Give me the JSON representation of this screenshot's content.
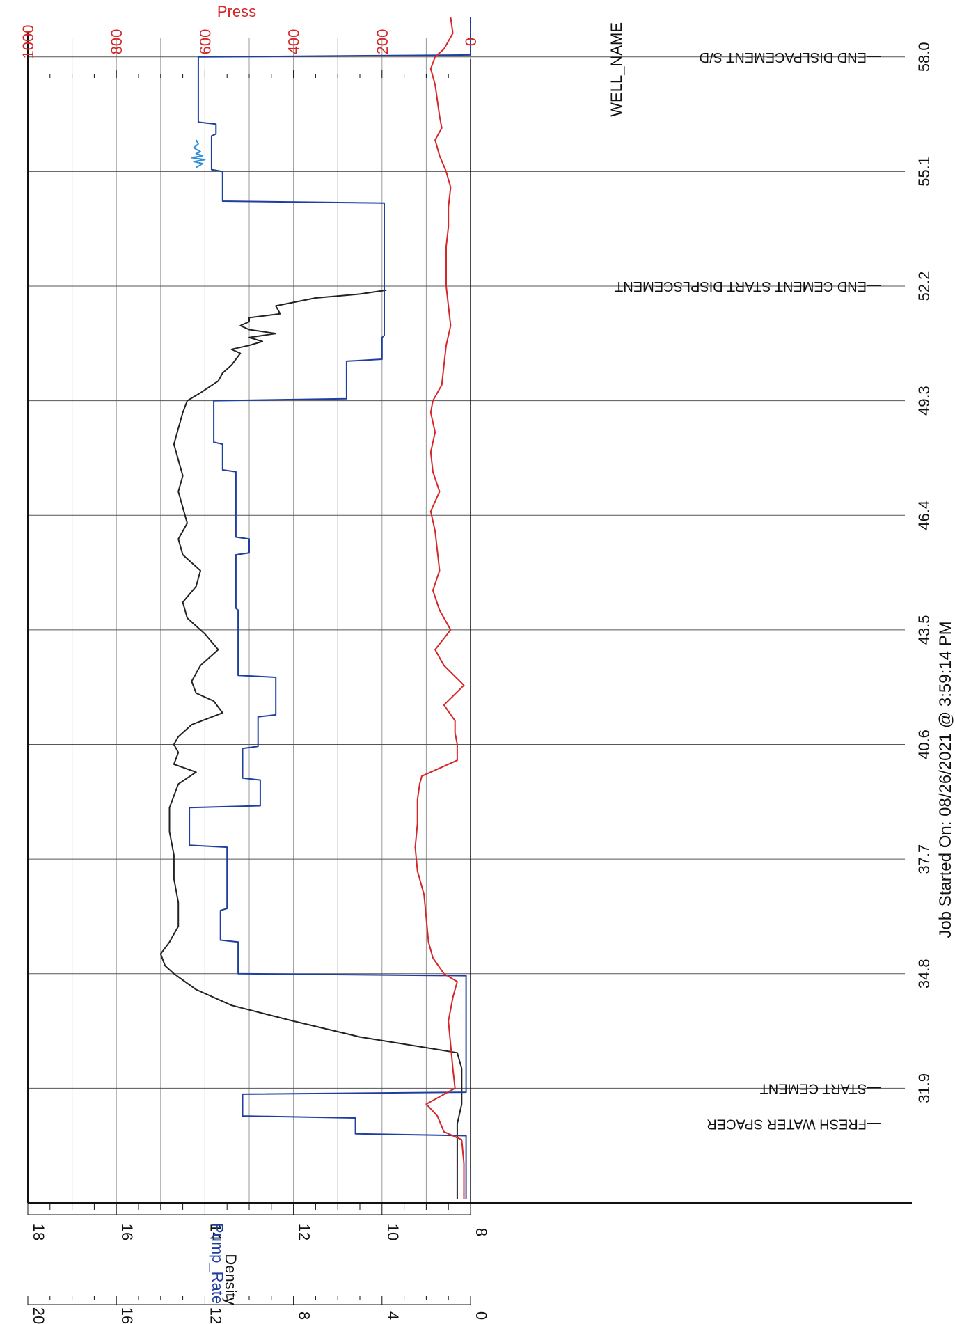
{
  "header": {
    "well_label": "WELL_NAME"
  },
  "footer": {
    "job_started": "Job Started On: 08/26/2021 @ 3:59:14 PM"
  },
  "chart_data": {
    "type": "line",
    "orientation": "rotated-90-clockwise",
    "x_axis": {
      "label": "",
      "range": [
        29.0,
        59.0
      ],
      "ticks": [
        "31.9",
        "34.8",
        "37.7",
        "40.6",
        "43.5",
        "46.4",
        "49.3",
        "52.2",
        "55.1",
        "58.0"
      ],
      "tick_values": [
        31.9,
        34.8,
        37.7,
        40.6,
        43.5,
        46.4,
        49.3,
        52.2,
        55.1,
        58.0
      ]
    },
    "y_axes": [
      {
        "name": "Press",
        "color": "#d62728",
        "range": [
          0,
          1000
        ],
        "ticks": [
          "0",
          "200",
          "400",
          "600",
          "800",
          "1000"
        ]
      },
      {
        "name": "Density",
        "color": "#222222",
        "range": [
          8,
          18
        ],
        "ticks": [
          "8",
          "10",
          "12",
          "14",
          "16",
          "18"
        ]
      },
      {
        "name": "Pump_Rate",
        "color": "#1f3fa0",
        "range": [
          0,
          20
        ],
        "ticks": [
          "0",
          "4",
          "8",
          "12",
          "16",
          "20"
        ]
      }
    ],
    "annotations": [
      {
        "x": 31.0,
        "text": "FRESH WATER SPACER"
      },
      {
        "x": 31.9,
        "text": "START CEMENT"
      },
      {
        "x": 52.2,
        "text": "END CEMENT START DISPLSCEMENT"
      },
      {
        "x": 58.0,
        "text": "END DISLPACEMENT S/D"
      }
    ],
    "series": [
      {
        "name": "Density",
        "color": "#222222",
        "x": [
          29.1,
          30.0,
          30.6,
          31.0,
          31.5,
          32.0,
          32.4,
          32.8,
          33.2,
          33.6,
          34.0,
          34.4,
          34.8,
          35.0,
          35.3,
          35.6,
          36.0,
          36.6,
          37.2,
          37.8,
          38.4,
          39.0,
          39.6,
          39.9,
          40.1,
          40.4,
          40.6,
          40.8,
          41.1,
          41.4,
          41.7,
          41.9,
          42.2,
          42.6,
          43.0,
          43.4,
          43.8,
          44.2,
          44.6,
          45.0,
          45.4,
          45.8,
          46.2,
          46.6,
          47.0,
          47.4,
          47.8,
          48.2,
          48.6,
          49.0,
          49.3,
          49.5,
          49.8,
          50.0,
          50.2,
          50.5,
          50.6,
          50.7,
          50.8,
          50.9,
          51.0,
          51.1,
          51.2,
          51.3,
          51.4,
          51.5,
          51.7,
          51.9,
          52.0,
          52.1
        ],
        "values": [
          8.3,
          8.3,
          8.3,
          8.3,
          8.2,
          8.2,
          8.2,
          8.3,
          10.5,
          12.0,
          13.4,
          14.2,
          14.7,
          14.9,
          15.0,
          14.8,
          14.6,
          14.6,
          14.7,
          14.7,
          14.8,
          14.8,
          14.6,
          14.2,
          14.7,
          14.6,
          14.7,
          14.6,
          14.3,
          13.6,
          13.8,
          14.2,
          14.3,
          14.1,
          13.7,
          14.0,
          14.4,
          14.5,
          14.2,
          14.1,
          14.5,
          14.6,
          14.4,
          14.5,
          14.6,
          14.5,
          14.6,
          14.7,
          14.6,
          14.5,
          14.4,
          14.1,
          13.7,
          13.6,
          13.4,
          13.2,
          13.4,
          13.0,
          12.7,
          13.0,
          12.4,
          13.0,
          13.2,
          13.0,
          13.0,
          12.3,
          12.4,
          11.5,
          10.5,
          9.9
        ]
      },
      {
        "name": "Pump_Rate",
        "color": "#1f3fa0",
        "x": [
          29.1,
          30.7,
          30.75,
          31.15,
          31.2,
          31.75,
          31.8,
          33.8,
          34.75,
          34.8,
          35.6,
          35.65,
          36.4,
          36.45,
          38.0,
          38.05,
          39.0,
          39.05,
          39.7,
          39.75,
          40.5,
          40.55,
          41.3,
          41.35,
          42.3,
          42.35,
          44.0,
          44.05,
          45.4,
          45.45,
          45.8,
          45.85,
          47.5,
          47.55,
          48.2,
          48.25,
          49.3,
          49.35,
          50.3,
          50.35,
          50.9,
          50.95,
          54.3,
          54.35,
          55.1,
          55.15,
          56.0,
          56.05,
          56.3,
          56.35,
          58.0,
          58.05,
          59.0
        ],
        "values": [
          0.2,
          0.2,
          5.2,
          5.2,
          10.3,
          10.3,
          0.2,
          0.2,
          0.2,
          10.5,
          10.5,
          11.3,
          11.3,
          11.0,
          11.0,
          12.7,
          12.7,
          9.5,
          9.5,
          10.3,
          10.3,
          9.6,
          9.6,
          8.8,
          8.8,
          10.5,
          10.5,
          10.6,
          10.6,
          10.0,
          10.0,
          10.6,
          10.6,
          11.2,
          11.2,
          11.6,
          11.6,
          5.6,
          5.6,
          4.0,
          4.0,
          3.9,
          3.9,
          11.2,
          11.2,
          11.7,
          11.7,
          11.5,
          11.5,
          12.3,
          12.3,
          0.0,
          0.0
        ]
      },
      {
        "name": "Press",
        "color": "#d62728",
        "x": [
          29.1,
          30.0,
          30.6,
          30.8,
          31.2,
          31.5,
          31.9,
          32.4,
          33.0,
          33.6,
          34.2,
          34.6,
          34.8,
          35.2,
          35.6,
          36.2,
          36.8,
          37.4,
          38.0,
          38.6,
          39.2,
          39.6,
          39.8,
          40.2,
          40.6,
          40.9,
          41.2,
          41.6,
          42.1,
          42.6,
          43.0,
          43.5,
          44.0,
          44.5,
          45.0,
          45.5,
          46.0,
          46.5,
          47.0,
          47.5,
          48.0,
          48.5,
          49.0,
          49.3,
          49.7,
          50.2,
          50.7,
          51.2,
          51.7,
          52.2,
          52.7,
          53.2,
          53.7,
          54.2,
          54.7,
          55.1,
          55.5,
          55.9,
          56.2,
          56.5,
          56.9,
          57.3,
          57.7,
          58.0,
          58.2,
          58.6,
          59.0
        ],
        "values": [
          15,
          15,
          20,
          60,
          75,
          100,
          35,
          40,
          45,
          50,
          40,
          30,
          60,
          85,
          95,
          100,
          105,
          120,
          125,
          120,
          120,
          115,
          110,
          30,
          30,
          35,
          35,
          60,
          15,
          60,
          80,
          45,
          70,
          85,
          70,
          75,
          80,
          90,
          70,
          85,
          90,
          80,
          90,
          85,
          65,
          60,
          55,
          45,
          50,
          55,
          55,
          55,
          50,
          50,
          45,
          55,
          70,
          80,
          65,
          70,
          75,
          80,
          90,
          80,
          60,
          40,
          45
        ]
      },
      {
        "name": "Pump_Rate",
        "color": "#2e8fd8",
        "x": [
          55.2,
          55.3,
          55.35,
          55.4,
          55.45,
          55.5,
          55.55,
          55.6,
          55.7,
          55.8,
          55.9
        ],
        "values": [
          12.4,
          12.1,
          12.5,
          12.0,
          12.6,
          12.1,
          12.4,
          12.2,
          12.5,
          12.3,
          12.4
        ]
      }
    ]
  }
}
